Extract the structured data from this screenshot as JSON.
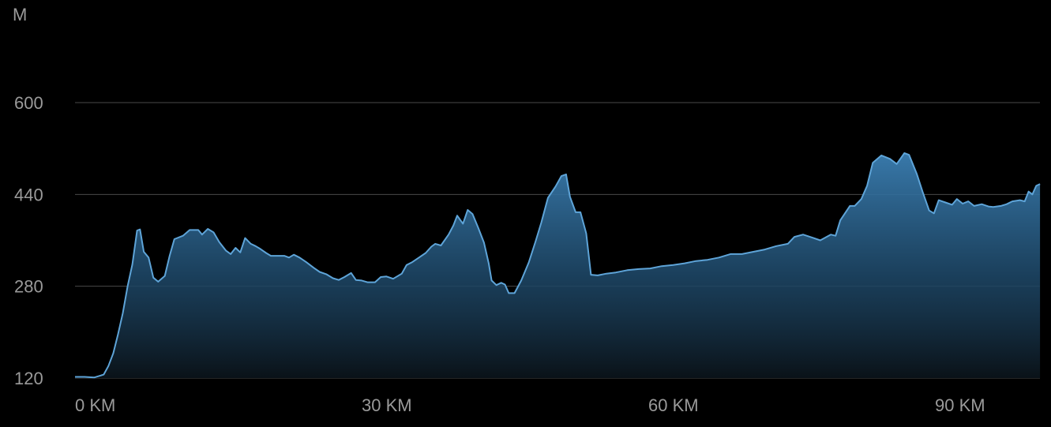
{
  "chart_data": {
    "type": "area",
    "ylabel": "M",
    "xlabel": "",
    "ylim": [
      120,
      600
    ],
    "xlim": [
      0,
      101
    ],
    "grid": true,
    "y_ticks": [
      {
        "value": 600,
        "label": "600"
      },
      {
        "value": 440,
        "label": "440"
      },
      {
        "value": 280,
        "label": "280"
      },
      {
        "value": 120,
        "label": "120"
      }
    ],
    "x_ticks": [
      {
        "value": 0,
        "label": "0 KM"
      },
      {
        "value": 30,
        "label": "30 KM"
      },
      {
        "value": 60,
        "label": "60 KM"
      },
      {
        "value": 90,
        "label": "90 KM"
      }
    ],
    "series": [
      {
        "values": [
          [
            0,
            122
          ],
          [
            1,
            122
          ],
          [
            2,
            121
          ],
          [
            3,
            126
          ],
          [
            3.5,
            141
          ],
          [
            4,
            163
          ],
          [
            4.5,
            196
          ],
          [
            5,
            233
          ],
          [
            5.5,
            280
          ],
          [
            6,
            318
          ],
          [
            6.5,
            377
          ],
          [
            6.8,
            379
          ],
          [
            7.2,
            340
          ],
          [
            7.7,
            330
          ],
          [
            8.2,
            295
          ],
          [
            8.7,
            288
          ],
          [
            9.4,
            298
          ],
          [
            9.9,
            333
          ],
          [
            10.4,
            362
          ],
          [
            11.3,
            368
          ],
          [
            12,
            378
          ],
          [
            12.9,
            378
          ],
          [
            13.3,
            370
          ],
          [
            13.9,
            380
          ],
          [
            14.5,
            374
          ],
          [
            15.1,
            357
          ],
          [
            15.8,
            342
          ],
          [
            16.3,
            336
          ],
          [
            16.8,
            347
          ],
          [
            17.3,
            339
          ],
          [
            17.8,
            364
          ],
          [
            18.4,
            354
          ],
          [
            18.9,
            350
          ],
          [
            19.4,
            345
          ],
          [
            20,
            338
          ],
          [
            20.5,
            333
          ],
          [
            21.1,
            333
          ],
          [
            21.9,
            333
          ],
          [
            22.4,
            330
          ],
          [
            22.9,
            335
          ],
          [
            23.5,
            330
          ],
          [
            24.2,
            322
          ],
          [
            25,
            312
          ],
          [
            25.6,
            305
          ],
          [
            26.3,
            301
          ],
          [
            27,
            294
          ],
          [
            27.6,
            291
          ],
          [
            28.2,
            296
          ],
          [
            28.9,
            303
          ],
          [
            29.4,
            291
          ],
          [
            30,
            290
          ],
          [
            30.6,
            287
          ],
          [
            31.4,
            287
          ],
          [
            32,
            296
          ],
          [
            32.6,
            297
          ],
          [
            33.3,
            293
          ],
          [
            34.2,
            302
          ],
          [
            34.7,
            317
          ],
          [
            35.3,
            322
          ],
          [
            36,
            330
          ],
          [
            36.7,
            338
          ],
          [
            37.3,
            349
          ],
          [
            37.7,
            354
          ],
          [
            38.3,
            351
          ],
          [
            39.1,
            370
          ],
          [
            39.6,
            386
          ],
          [
            40,
            403
          ],
          [
            40.6,
            389
          ],
          [
            41.1,
            413
          ],
          [
            41.6,
            406
          ],
          [
            42.2,
            382
          ],
          [
            42.8,
            356
          ],
          [
            43.3,
            320
          ],
          [
            43.6,
            290
          ],
          [
            44.1,
            282
          ],
          [
            44.6,
            286
          ],
          [
            45,
            283
          ],
          [
            45.4,
            268
          ],
          [
            46,
            268
          ],
          [
            46.7,
            290
          ],
          [
            47.5,
            322
          ],
          [
            48.2,
            358
          ],
          [
            48.8,
            391
          ],
          [
            49.5,
            434
          ],
          [
            50.3,
            454
          ],
          [
            50.9,
            472
          ],
          [
            51.4,
            475
          ],
          [
            51.8,
            436
          ],
          [
            52.4,
            409
          ],
          [
            52.9,
            409
          ],
          [
            53.5,
            372
          ],
          [
            54,
            300
          ],
          [
            54.7,
            299
          ],
          [
            55.6,
            302
          ],
          [
            56.6,
            304
          ],
          [
            57.8,
            308
          ],
          [
            59,
            310
          ],
          [
            60.2,
            311
          ],
          [
            61.4,
            315
          ],
          [
            62.6,
            317
          ],
          [
            63.8,
            320
          ],
          [
            65,
            324
          ],
          [
            66.2,
            326
          ],
          [
            67.4,
            330
          ],
          [
            68.6,
            336
          ],
          [
            69.8,
            336
          ],
          [
            71,
            340
          ],
          [
            72.2,
            344
          ],
          [
            73.4,
            350
          ],
          [
            74.6,
            354
          ],
          [
            75.3,
            366
          ],
          [
            76.2,
            370
          ],
          [
            77.3,
            364
          ],
          [
            78,
            360
          ],
          [
            79.1,
            370
          ],
          [
            79.6,
            368
          ],
          [
            80.1,
            395
          ],
          [
            81.1,
            420
          ],
          [
            81.6,
            420
          ],
          [
            82.3,
            432
          ],
          [
            82.9,
            455
          ],
          [
            83.5,
            495
          ],
          [
            84.4,
            508
          ],
          [
            85.3,
            502
          ],
          [
            86,
            493
          ],
          [
            86.8,
            512
          ],
          [
            87.3,
            509
          ],
          [
            88.1,
            476
          ],
          [
            88.7,
            445
          ],
          [
            89.4,
            412
          ],
          [
            89.9,
            407
          ],
          [
            90.4,
            430
          ],
          [
            91.1,
            426
          ],
          [
            91.8,
            422
          ],
          [
            92.3,
            432
          ],
          [
            92.9,
            424
          ],
          [
            93.5,
            428
          ],
          [
            94.1,
            420
          ],
          [
            94.9,
            423
          ],
          [
            95.6,
            419
          ],
          [
            96.1,
            418
          ],
          [
            96.9,
            420
          ],
          [
            97.5,
            423
          ],
          [
            98.1,
            428
          ],
          [
            98.9,
            430
          ],
          [
            99.4,
            428
          ],
          [
            99.8,
            445
          ],
          [
            100.2,
            440
          ],
          [
            100.6,
            455
          ],
          [
            101,
            458
          ]
        ]
      }
    ],
    "colors": {
      "background": "#000000",
      "line": "#5ea4d8",
      "fill_top": "#3b7fb3",
      "fill_bottom": "#0a1218",
      "grid": "#4a4a4a",
      "tick_text": "#9a9a9a"
    }
  }
}
